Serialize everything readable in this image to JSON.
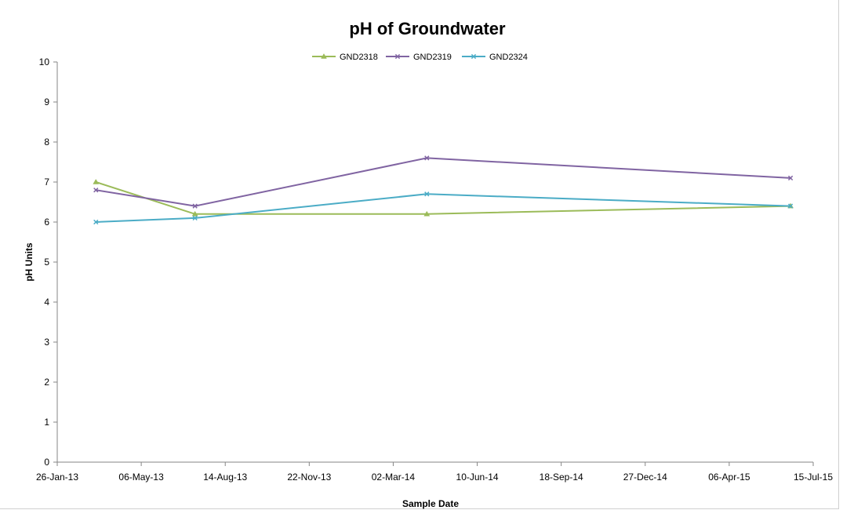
{
  "chart_data": {
    "type": "line",
    "title": "pH of Groundwater",
    "xlabel": "Sample Date",
    "ylabel": "pH Units",
    "ylim": [
      0,
      10
    ],
    "y_ticks": [
      0,
      1,
      2,
      3,
      4,
      5,
      6,
      7,
      8,
      9,
      10
    ],
    "xlim": [
      "2013-01-26",
      "2015-07-15"
    ],
    "x_ticks": [
      {
        "date": "2013-01-26",
        "label": "26-Jan-13"
      },
      {
        "date": "2013-05-06",
        "label": "06-May-13"
      },
      {
        "date": "2013-08-14",
        "label": "14-Aug-13"
      },
      {
        "date": "2013-11-22",
        "label": "22-Nov-13"
      },
      {
        "date": "2014-03-02",
        "label": "02-Mar-14"
      },
      {
        "date": "2014-06-10",
        "label": "10-Jun-14"
      },
      {
        "date": "2014-09-18",
        "label": "18-Sep-14"
      },
      {
        "date": "2014-12-27",
        "label": "27-Dec-14"
      },
      {
        "date": "2015-04-06",
        "label": "06-Apr-15"
      },
      {
        "date": "2015-07-15",
        "label": "15-Jul-15"
      }
    ],
    "grid": false,
    "legend_position": "top",
    "series": [
      {
        "name": "GND2318",
        "color": "#9bbb59",
        "marker": "triangle",
        "points": [
          {
            "x": "2013-03-13",
            "y": 7.0
          },
          {
            "x": "2013-07-09",
            "y": 6.2
          },
          {
            "x": "2014-04-11",
            "y": 6.2
          },
          {
            "x": "2015-06-18",
            "y": 6.4
          }
        ]
      },
      {
        "name": "GND2319",
        "color": "#8064a2",
        "marker": "x",
        "points": [
          {
            "x": "2013-03-13",
            "y": 6.8
          },
          {
            "x": "2013-07-09",
            "y": 6.4
          },
          {
            "x": "2014-04-11",
            "y": 7.6
          },
          {
            "x": "2015-06-18",
            "y": 7.1
          }
        ]
      },
      {
        "name": "GND2324",
        "color": "#4bacc6",
        "marker": "x",
        "points": [
          {
            "x": "2013-03-13",
            "y": 6.0
          },
          {
            "x": "2013-07-09",
            "y": 6.1
          },
          {
            "x": "2014-04-11",
            "y": 6.7
          },
          {
            "x": "2015-06-18",
            "y": 6.4
          }
        ]
      }
    ]
  }
}
